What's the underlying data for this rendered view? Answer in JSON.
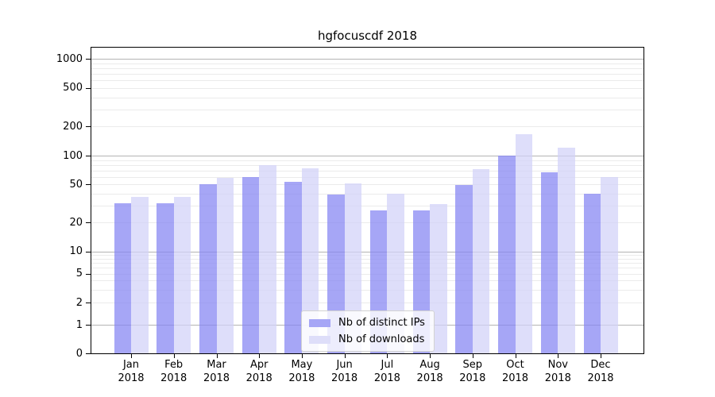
{
  "chart_data": {
    "type": "bar",
    "title": "hgfocuscdf 2018",
    "scale": "symlog",
    "grid": true,
    "categories": [
      "Jan",
      "Feb",
      "Mar",
      "Apr",
      "May",
      "Jun",
      "Jul",
      "Aug",
      "Sep",
      "Oct",
      "Nov",
      "Dec"
    ],
    "x_year": "2018",
    "series": [
      {
        "name": "Nb of distinct IPs",
        "color": "#a6a6f6",
        "fill": "rgba(132,132,243,0.72)",
        "values": [
          32,
          32,
          50,
          60,
          53,
          39,
          27,
          27,
          49,
          100,
          67,
          40
        ]
      },
      {
        "name": "Nb of downloads",
        "color": "#dedef9",
        "fill": "rgba(209,209,248,0.72)",
        "values": [
          37,
          37,
          59,
          80,
          74,
          51,
          40,
          31,
          73,
          167,
          121,
          60
        ]
      }
    ],
    "yticks": [
      0,
      1,
      2,
      5,
      10,
      20,
      50,
      100,
      200,
      500,
      1000
    ],
    "major_gridlines": [
      1,
      10,
      100,
      1000
    ],
    "ylim": [
      0,
      1300
    ],
    "legend": {
      "position": "lower center"
    }
  }
}
